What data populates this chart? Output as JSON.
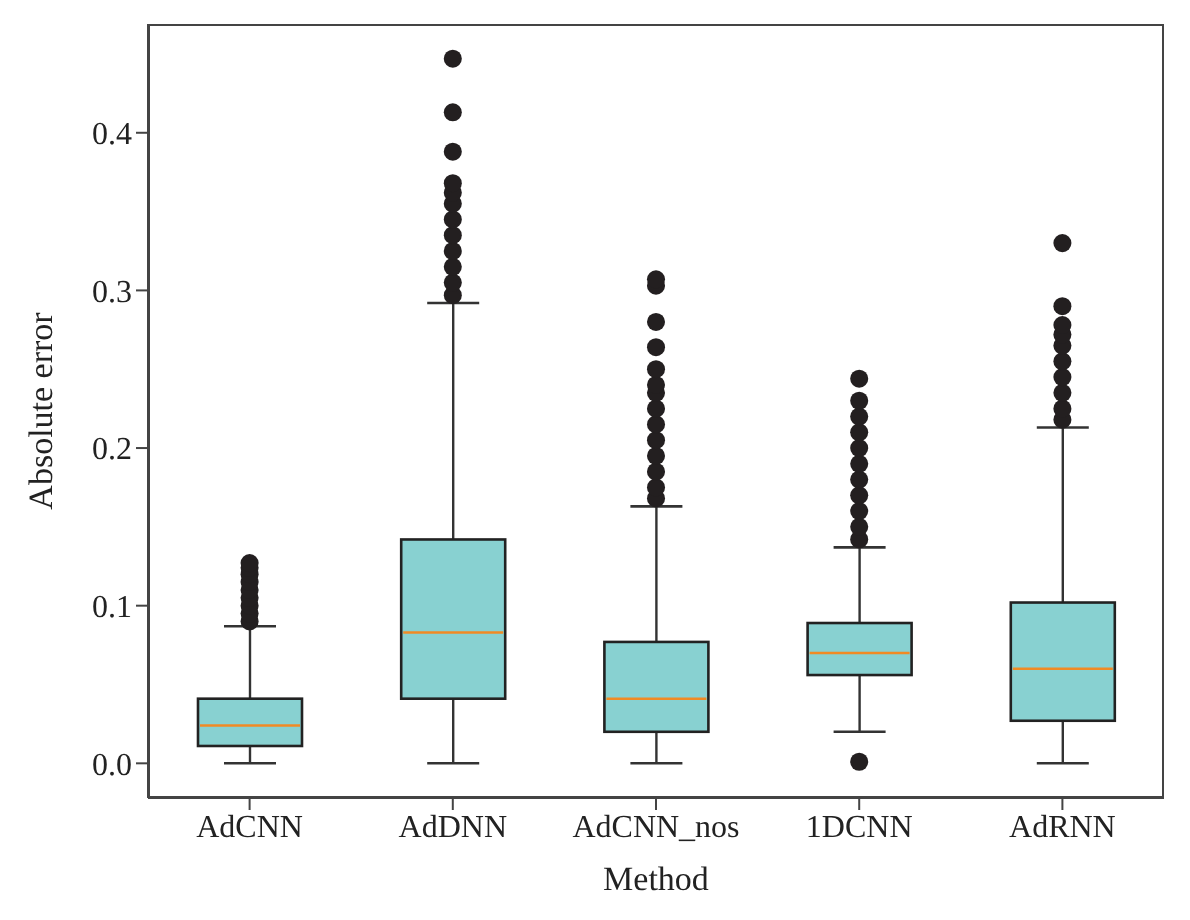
{
  "chart_data": {
    "type": "box",
    "xlabel": "Method",
    "ylabel": "Absolute error",
    "categories": [
      "AdCNN",
      "AdDNN",
      "AdCNN_nos",
      "1DCNN",
      "AdRNN"
    ],
    "color": "#88d1d1",
    "ylim": [
      -0.022,
      0.469
    ],
    "yticks": [
      {
        "value": 0,
        "label": "0.0"
      },
      {
        "value": 0.1,
        "label": "0.1"
      },
      {
        "value": 0.2,
        "label": "0.2"
      },
      {
        "value": 0.3,
        "label": "0.3"
      },
      {
        "value": 0.4,
        "label": "0.4"
      }
    ],
    "boxes": [
      {
        "low": 0,
        "q1": 0.011,
        "median": 0.024,
        "q3": 0.041,
        "high": 0.087,
        "outliers": [
          0.09,
          0.095,
          0.1,
          0.105,
          0.11,
          0.115,
          0.12,
          0.124,
          0.127
        ]
      },
      {
        "low": 0,
        "q1": 0.041,
        "median": 0.083,
        "q3": 0.142,
        "high": 0.292,
        "outliers": [
          0.297,
          0.305,
          0.315,
          0.325,
          0.335,
          0.345,
          0.355,
          0.362,
          0.368,
          0.388,
          0.413,
          0.447
        ]
      },
      {
        "low": 0,
        "q1": 0.02,
        "median": 0.041,
        "q3": 0.077,
        "high": 0.163,
        "outliers": [
          0.168,
          0.175,
          0.185,
          0.195,
          0.205,
          0.215,
          0.225,
          0.235,
          0.24,
          0.25,
          0.264,
          0.28,
          0.303,
          0.307
        ]
      },
      {
        "low": 0.02,
        "q1": 0.056,
        "median": 0.07,
        "q3": 0.089,
        "high": 0.137,
        "outliers": [
          0.001,
          0.142,
          0.15,
          0.16,
          0.17,
          0.18,
          0.19,
          0.2,
          0.21,
          0.22,
          0.23,
          0.244
        ]
      },
      {
        "low": 0,
        "q1": 0.027,
        "median": 0.06,
        "q3": 0.102,
        "high": 0.213,
        "outliers": [
          0.218,
          0.225,
          0.235,
          0.245,
          0.255,
          0.265,
          0.272,
          0.278,
          0.29,
          0.33
        ]
      }
    ]
  }
}
